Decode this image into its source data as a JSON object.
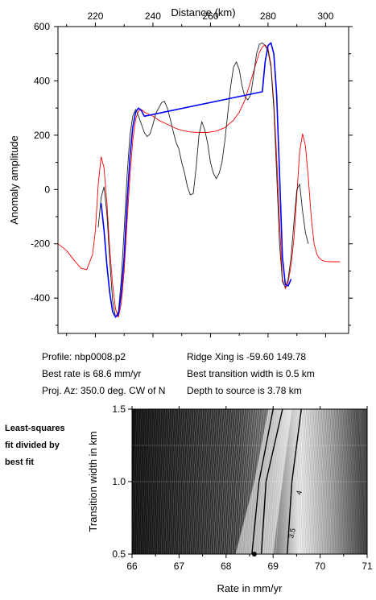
{
  "chart_data": [
    {
      "type": "line",
      "title": "",
      "xlabel_top": "Distance (km)",
      "ylabel": "Anomaly amplitude",
      "xlim": [
        207,
        308
      ],
      "ylim": [
        -530,
        600
      ],
      "x_ticks": [
        220,
        240,
        260,
        280,
        300
      ],
      "y_ticks": [
        600,
        400,
        200,
        0,
        -200,
        -400
      ],
      "grid": false,
      "series": [
        {
          "color": "#ff0000",
          "x": [
            207,
            210,
            213,
            215,
            217,
            219,
            220,
            221,
            222,
            223,
            224,
            225,
            226,
            227,
            228,
            229,
            230,
            231,
            232,
            233,
            234,
            235,
            236,
            237,
            238,
            240,
            242,
            245,
            248,
            250,
            253,
            256,
            259,
            262,
            265,
            268,
            270,
            272,
            274,
            276,
            277,
            278,
            279,
            280,
            281,
            282,
            283,
            284,
            285,
            286,
            287,
            288,
            289,
            290,
            291,
            292,
            293,
            294,
            295,
            296,
            297,
            298,
            299,
            300,
            302,
            305
          ],
          "y": [
            -200,
            -225,
            -265,
            -290,
            -295,
            -240,
            -150,
            20,
            120,
            80,
            -50,
            -220,
            -350,
            -440,
            -470,
            -420,
            -300,
            -120,
            50,
            180,
            260,
            290,
            295,
            285,
            280,
            270,
            255,
            240,
            225,
            218,
            212,
            210,
            210,
            215,
            228,
            255,
            285,
            330,
            400,
            470,
            505,
            525,
            532,
            520,
            460,
            320,
            120,
            -120,
            -330,
            -365,
            -340,
            -280,
            -180,
            -20,
            140,
            205,
            160,
            40,
            -100,
            -200,
            -240,
            -255,
            -262,
            -265,
            -266,
            -266
          ]
        },
        {
          "color": "#0000ff",
          "x": [
            222,
            223,
            224,
            225,
            226,
            227,
            228,
            229,
            230,
            231,
            232,
            233,
            234,
            235,
            236,
            237,
            278,
            279,
            280,
            281,
            282,
            283,
            284,
            285,
            286,
            287,
            288
          ],
          "y": [
            -50,
            -150,
            -280,
            -380,
            -450,
            -470,
            -460,
            -380,
            -250,
            -50,
            120,
            230,
            285,
            300,
            290,
            270,
            360,
            470,
            530,
            540,
            500,
            350,
            60,
            -250,
            -350,
            -355,
            -330
          ]
        },
        {
          "color": "#222222",
          "x": [
            221,
            222,
            223,
            224,
            225,
            226,
            227,
            228,
            229,
            230,
            231,
            232,
            233,
            234,
            235,
            236,
            237,
            238,
            239,
            240,
            241,
            242,
            243,
            244,
            245,
            246,
            247,
            248,
            249,
            250,
            251,
            252,
            253,
            254,
            255,
            256,
            257,
            258,
            259,
            260,
            261,
            262,
            263,
            264,
            265,
            266,
            267,
            268,
            269,
            270,
            271,
            272,
            273,
            274,
            275,
            276,
            277,
            278,
            279,
            280,
            281,
            282,
            283,
            284,
            285,
            286,
            287,
            288,
            289,
            290,
            291,
            292,
            293,
            294
          ],
          "y": [
            -140,
            -30,
            10,
            -90,
            -260,
            -410,
            -470,
            -450,
            -330,
            -150,
            50,
            200,
            270,
            295,
            270,
            240,
            210,
            195,
            205,
            240,
            280,
            300,
            320,
            325,
            300,
            260,
            215,
            175,
            150,
            100,
            60,
            10,
            -20,
            -15,
            80,
            200,
            250,
            220,
            170,
            100,
            60,
            40,
            60,
            100,
            180,
            280,
            380,
            450,
            470,
            440,
            380,
            340,
            330,
            350,
            420,
            500,
            535,
            540,
            530,
            510,
            450,
            300,
            60,
            -200,
            -340,
            -360,
            -330,
            -250,
            -120,
            0,
            20,
            -80,
            -160,
            -200
          ]
        }
      ]
    },
    {
      "type": "heatmap",
      "title": "",
      "xlabel": "Rate in mm/yr",
      "ylabel": "Transition width in km",
      "xlim": [
        66,
        71
      ],
      "ylim": [
        0.5,
        1.5
      ],
      "x_ticks": [
        66,
        67,
        68,
        69,
        70,
        71
      ],
      "y_ticks": [
        0.5,
        1.0,
        1.5
      ],
      "contour_labels": [
        "4",
        "3.5"
      ],
      "best_fit_point": {
        "x": 68.6,
        "y": 0.5
      },
      "colormap": [
        "#000000",
        "#ffffff"
      ]
    }
  ],
  "info": {
    "profile": "Profile: nbp0008.p2",
    "best_rate": "Best rate is 68.6 mm/yr",
    "proj_az": "Proj. Az: 350.0 deg. CW of N",
    "ridge_xing": "Ridge Xing is -59.60 149.78",
    "best_transition": "Best transition width is 0.5 km",
    "depth_source": "Depth to source is   3.78 km"
  },
  "side_note": [
    "Least-squares",
    "fit divided by",
    "best fit"
  ]
}
